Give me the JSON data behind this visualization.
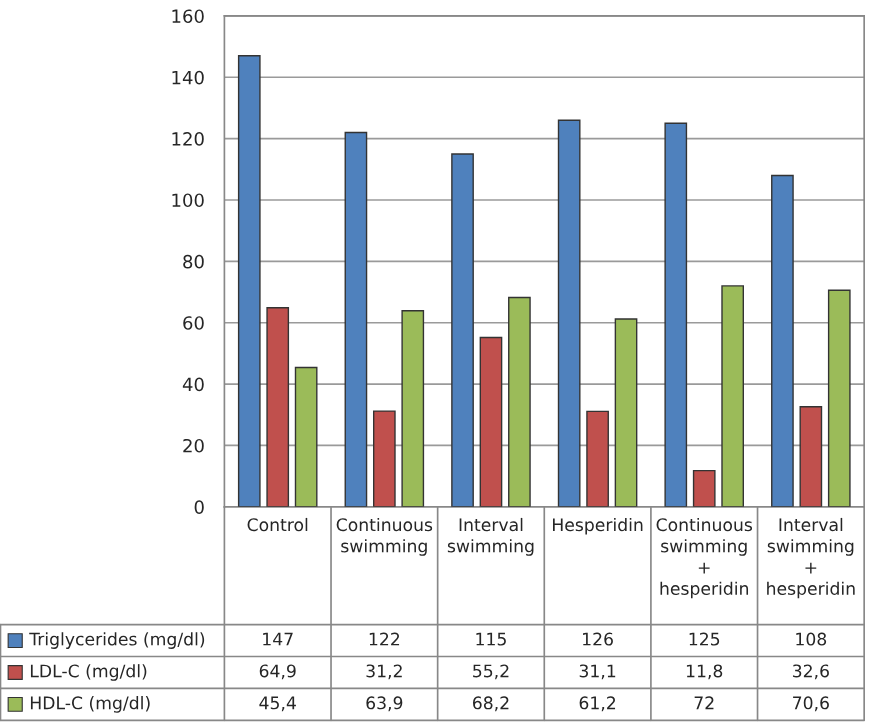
{
  "chart_data": {
    "type": "bar",
    "categories": [
      "Control",
      "Continuous\nswimming",
      "Interval\nswimming",
      "Hesperidin",
      "Continuous\nswimming\n+\nhesperidin",
      "Interval\nswimming\n+\nhesperidin"
    ],
    "series": [
      {
        "name": "Triglycerides (mg/dl)",
        "color": "#4f81bd",
        "values": [
          147,
          122,
          115,
          126,
          125,
          108
        ],
        "value_labels": [
          "147",
          "122",
          "115",
          "126",
          "125",
          "108"
        ]
      },
      {
        "name": "LDL-C (mg/dl)",
        "color": "#c0504d",
        "values": [
          64.9,
          31.2,
          55.2,
          31.1,
          11.8,
          32.6
        ],
        "value_labels": [
          "64,9",
          "31,2",
          "55,2",
          "31,1",
          "11,8",
          "32,6"
        ]
      },
      {
        "name": "HDL-C (mg/dl)",
        "color": "#9bbb59",
        "values": [
          45.4,
          63.9,
          68.2,
          61.2,
          72,
          70.6
        ],
        "value_labels": [
          "45,4",
          "63,9",
          "68,2",
          "61,2",
          "72",
          "70,6"
        ]
      }
    ],
    "ylim": [
      0,
      160
    ],
    "yticks": [
      0,
      20,
      40,
      60,
      80,
      100,
      120,
      140,
      160
    ],
    "grid": "y",
    "legend": "bottom"
  }
}
